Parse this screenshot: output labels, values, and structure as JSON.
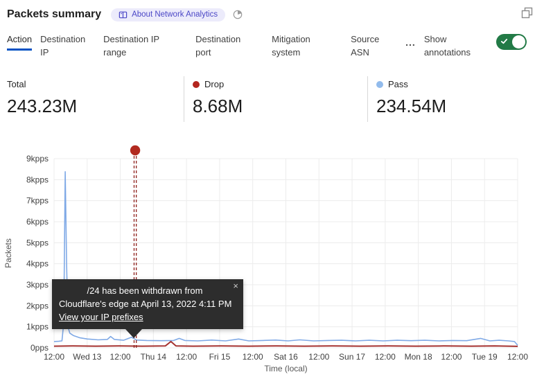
{
  "header": {
    "title": "Packets summary",
    "badge_label": "About Network Analytics"
  },
  "icons": {
    "badge_icon": "book-icon",
    "header_time_icon": "pie-clock-icon",
    "top_right_icon": "expand-overlap-squares-icon",
    "toggle_icon": "check-icon",
    "tooltip_close_icon": "close-x"
  },
  "colors": {
    "active_tab_underline": "#0051C3",
    "toggle_on_green": "#227A46",
    "drop_red": "#B3251E",
    "pass_blue": "#92BBEC",
    "tooltip_bg": "#2d2d2d",
    "gridline": "#ececec"
  },
  "tabs": {
    "items": [
      {
        "label": "Action",
        "active": true
      },
      {
        "label": "Destination IP",
        "active": false
      },
      {
        "label": "Destination IP range",
        "active": false
      },
      {
        "label": "Destination port",
        "active": false
      },
      {
        "label": "Mitigation system",
        "active": false
      },
      {
        "label": "Source ASN",
        "active": false
      }
    ],
    "more_label": "...",
    "annotations_label": "Show annotations",
    "annotations_toggle_on": true
  },
  "stats": {
    "items": [
      {
        "label": "Total",
        "value": "243.23M",
        "dot": null
      },
      {
        "label": "Drop",
        "value": "8.68M",
        "dot": "#B3251E"
      },
      {
        "label": "Pass",
        "value": "234.54M",
        "dot": "#92BBEC"
      }
    ]
  },
  "tooltip": {
    "message_line1": "/24 has been withdrawn from",
    "message_line2": "Cloudflare's edge at April 13, 2022 4:11 PM",
    "link_label": "View your IP prefixes",
    "close_label": "×"
  },
  "chart_data": {
    "type": "line",
    "title": "Packets summary",
    "ylabel": "Packets",
    "xlabel": "Time (local)",
    "y_unit": "kpps",
    "ylim": [
      0,
      9
    ],
    "y_max_kpps": 9,
    "y_ticks": [
      "0pps",
      "1kpps",
      "2kpps",
      "3kpps",
      "4kpps",
      "5kpps",
      "6kpps",
      "7kpps",
      "8kpps",
      "9kpps"
    ],
    "x_ticks": [
      "12:00",
      "Wed 13",
      "12:00",
      "Thu 14",
      "12:00",
      "Fri 15",
      "12:00",
      "Sat 16",
      "12:00",
      "Sun 17",
      "12:00",
      "Mon 18",
      "12:00",
      "Tue 19",
      "12:00"
    ],
    "grid": true,
    "legend_position": "above-in-stats-row",
    "series": [
      {
        "name": "Pass",
        "color": "#7FA9E6",
        "peak_kpps": 8.38,
        "points": [
          [
            0.0,
            0.3
          ],
          [
            0.01,
            0.31
          ],
          [
            0.017,
            0.33
          ],
          [
            0.021,
            1.2
          ],
          [
            0.024,
            8.38
          ],
          [
            0.027,
            4.0
          ],
          [
            0.03,
            1.0
          ],
          [
            0.034,
            0.7
          ],
          [
            0.042,
            0.58
          ],
          [
            0.055,
            0.48
          ],
          [
            0.072,
            0.42
          ],
          [
            0.095,
            0.38
          ],
          [
            0.115,
            0.4
          ],
          [
            0.122,
            0.54
          ],
          [
            0.13,
            0.4
          ],
          [
            0.15,
            0.36
          ],
          [
            0.167,
            0.5
          ],
          [
            0.178,
            0.37
          ],
          [
            0.2,
            0.35
          ],
          [
            0.23,
            0.34
          ],
          [
            0.258,
            0.35
          ],
          [
            0.27,
            0.45
          ],
          [
            0.282,
            0.35
          ],
          [
            0.31,
            0.33
          ],
          [
            0.34,
            0.37
          ],
          [
            0.37,
            0.33
          ],
          [
            0.398,
            0.42
          ],
          [
            0.42,
            0.33
          ],
          [
            0.45,
            0.35
          ],
          [
            0.478,
            0.37
          ],
          [
            0.505,
            0.33
          ],
          [
            0.53,
            0.38
          ],
          [
            0.56,
            0.33
          ],
          [
            0.59,
            0.35
          ],
          [
            0.62,
            0.36
          ],
          [
            0.65,
            0.33
          ],
          [
            0.68,
            0.36
          ],
          [
            0.71,
            0.33
          ],
          [
            0.74,
            0.36
          ],
          [
            0.77,
            0.34
          ],
          [
            0.8,
            0.36
          ],
          [
            0.83,
            0.33
          ],
          [
            0.86,
            0.35
          ],
          [
            0.89,
            0.34
          ],
          [
            0.92,
            0.45
          ],
          [
            0.94,
            0.33
          ],
          [
            0.96,
            0.36
          ],
          [
            0.98,
            0.33
          ],
          [
            0.993,
            0.3
          ],
          [
            1.0,
            0.12
          ]
        ]
      },
      {
        "name": "Drop",
        "color": "#A53230",
        "points": [
          [
            0.0,
            0.08
          ],
          [
            0.04,
            0.09
          ],
          [
            0.09,
            0.08
          ],
          [
            0.14,
            0.09
          ],
          [
            0.19,
            0.08
          ],
          [
            0.24,
            0.09
          ],
          [
            0.252,
            0.3
          ],
          [
            0.263,
            0.09
          ],
          [
            0.3,
            0.08
          ],
          [
            0.36,
            0.09
          ],
          [
            0.42,
            0.08
          ],
          [
            0.48,
            0.09
          ],
          [
            0.54,
            0.08
          ],
          [
            0.6,
            0.09
          ],
          [
            0.66,
            0.08
          ],
          [
            0.72,
            0.09
          ],
          [
            0.78,
            0.08
          ],
          [
            0.84,
            0.09
          ],
          [
            0.9,
            0.08
          ],
          [
            0.95,
            0.09
          ],
          [
            1.0,
            0.07
          ]
        ]
      }
    ],
    "annotation": {
      "x_frac": 0.175,
      "line_color": "#8E1F1B",
      "dot_color": "#B22A1F",
      "meaning": "IP prefix withdrawal annotation marker"
    }
  }
}
